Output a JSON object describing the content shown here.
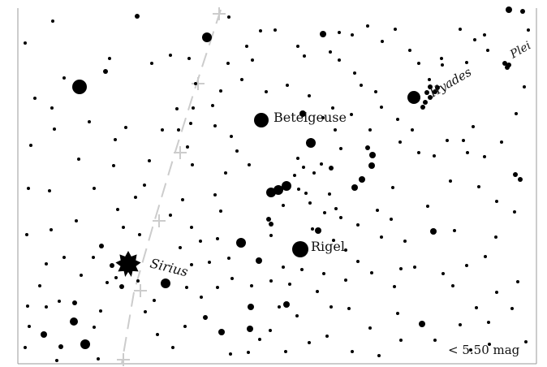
{
  "map": {
    "labels": {
      "betelgeuse": "Betelgeuse",
      "rigel": "Rigel",
      "sirius": "Sirius",
      "hyades": "Hyades",
      "pleiades": "Plei"
    },
    "magnitude_limit": "< 5.50 mag",
    "colors": {
      "background": "#ffffff",
      "stars": "#000000",
      "frame": "#999999",
      "ecliptic": "#cccccc"
    }
  }
}
